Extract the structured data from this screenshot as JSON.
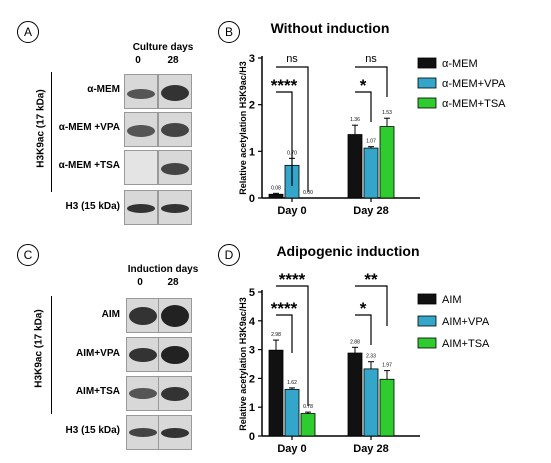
{
  "panels": {
    "A": {
      "letter": "A",
      "header": "Culture days",
      "columns": [
        "0",
        "28"
      ],
      "rows": [
        "α-MEM",
        "α-MEM +VPA",
        "α-MEM +TSA",
        "H3 (15 kDa)"
      ],
      "side_label": "H3K9ac (17 kDa)"
    },
    "C": {
      "letter": "C",
      "header": "Induction days",
      "columns": [
        "0",
        "28"
      ],
      "rows": [
        "AIM",
        "AIM+VPA",
        "AIM+TSA",
        "H3 (15 kDa)"
      ],
      "side_label": "H3K9ac (17 kDa)"
    },
    "B": {
      "letter": "B"
    },
    "D": {
      "letter": "D"
    }
  },
  "colors": {
    "black": "#111111",
    "blue": "#33a6c9",
    "green": "#2ecc2e"
  },
  "chart_data": [
    {
      "type": "bar",
      "title": "Without induction",
      "ylabel": "Relative acetylation H3K9ac/H3",
      "categories": [
        "Day 0",
        "Day 28"
      ],
      "ylim": [
        0,
        3
      ],
      "yticks": [
        "0",
        "1",
        "2",
        "3"
      ],
      "series": [
        {
          "name": "α-MEM",
          "values": [
            0.08,
            1.36
          ],
          "errors": [
            0.02,
            0.2
          ],
          "labels": [
            "0.08",
            "1.36"
          ],
          "color": "#111111"
        },
        {
          "name": "α-MEM+VPA",
          "values": [
            0.7,
            1.07
          ],
          "errors": [
            0.15,
            0.03
          ],
          "labels": [
            "0.70",
            "1.07"
          ],
          "color": "#33a6c9"
        },
        {
          "name": "α-MEM+TSA",
          "values": [
            0.0,
            1.53
          ],
          "errors": [
            0.0,
            0.18
          ],
          "labels": [
            "0.00",
            "1.53"
          ],
          "color": "#2ecc2e"
        }
      ],
      "significance": [
        {
          "group": 0,
          "from": 0,
          "to": 2,
          "label": "ns"
        },
        {
          "group": 0,
          "from": 0,
          "to": 1,
          "label": "****"
        },
        {
          "group": 1,
          "from": 0,
          "to": 2,
          "label": "ns"
        },
        {
          "group": 1,
          "from": 0,
          "to": 1,
          "label": "*"
        }
      ]
    },
    {
      "type": "bar",
      "title": "Adipogenic induction",
      "ylabel": "Relative acetylation H3K9ac/H3",
      "categories": [
        "Day 0",
        "Day 28"
      ],
      "ylim": [
        0,
        5
      ],
      "yticks": [
        "0",
        "1",
        "2",
        "3",
        "4",
        "5"
      ],
      "series": [
        {
          "name": "AIM",
          "values": [
            2.98,
            2.88
          ],
          "errors": [
            0.35,
            0.2
          ],
          "labels": [
            "2.98",
            "2.88"
          ],
          "color": "#111111"
        },
        {
          "name": "AIM+VPA",
          "values": [
            1.62,
            2.33
          ],
          "errors": [
            0.05,
            0.25
          ],
          "labels": [
            "1.62",
            "2.33"
          ],
          "color": "#33a6c9"
        },
        {
          "name": "AIM+TSA",
          "values": [
            0.78,
            1.97
          ],
          "errors": [
            0.05,
            0.3
          ],
          "labels": [
            "0.78",
            "1.97"
          ],
          "color": "#2ecc2e"
        }
      ],
      "significance": [
        {
          "group": 0,
          "from": 0,
          "to": 2,
          "label": "****"
        },
        {
          "group": 0,
          "from": 0,
          "to": 1,
          "label": "****"
        },
        {
          "group": 1,
          "from": 0,
          "to": 2,
          "label": "**"
        },
        {
          "group": 1,
          "from": 0,
          "to": 1,
          "label": "*"
        }
      ]
    }
  ]
}
